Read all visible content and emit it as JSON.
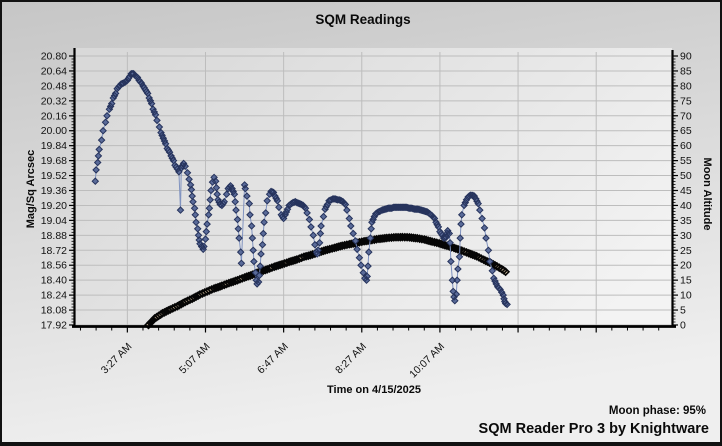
{
  "title": "SQM Readings",
  "footer": {
    "moon_phase": "Moon phase: 95%",
    "moon_phase_value": "95%",
    "credit": "SQM Reader Pro 3 by Knightware"
  },
  "colors": {
    "window_bg_top": "#c6c6c6",
    "window_bg_bottom": "#efefef",
    "plot_bg_left": "#d9d9d9",
    "plot_bg_right": "#f3f3f3",
    "gridline": "#bdbdbd",
    "axis": "#000000",
    "sqm_marker_fill": "#5a6b99",
    "sqm_marker_stroke": "#26335c",
    "sqm_line": "#8093c0",
    "moon_marker_fill": "#f3dbb6",
    "moon_marker_stroke": "#050505"
  },
  "chart_data": {
    "type": "scatter",
    "title": "SQM Readings",
    "xlabel": "Time on 4/15/2025",
    "ylabel_left": "Mag/Sq Arcsec",
    "ylabel_right": "Moon Altitude",
    "grid": true,
    "x_tick_labels": [
      "3:27 AM",
      "5:07 AM",
      "6:47 AM",
      "8:27 AM",
      "10:07 AM"
    ],
    "x_tick_minutes": [
      207,
      307,
      407,
      507,
      607
    ],
    "x_range_minutes": [
      140,
      904
    ],
    "y_left_ticks": [
      20.8,
      20.64,
      20.48,
      20.32,
      20.16,
      20.0,
      19.84,
      19.68,
      19.52,
      19.36,
      19.2,
      19.04,
      18.88,
      18.72,
      18.56,
      18.4,
      18.24,
      18.08,
      17.92
    ],
    "y_left_range": [
      17.92,
      20.8
    ],
    "y_right_ticks": [
      90,
      85,
      80,
      75,
      70,
      65,
      60,
      55,
      50,
      45,
      40,
      35,
      30,
      25,
      20,
      15,
      10,
      5,
      0
    ],
    "y_right_range": [
      0,
      90
    ],
    "series": [
      {
        "name": "SQM reading (Mag/Sq Arcsec)",
        "axis": "left",
        "marker": "diamond",
        "points": [
          [
            166,
            19.46
          ],
          [
            167,
            19.58
          ],
          [
            169,
            19.66
          ],
          [
            170,
            19.73
          ],
          [
            171,
            19.8
          ],
          [
            174,
            19.9
          ],
          [
            176,
            20.0
          ],
          [
            179,
            20.09
          ],
          [
            181,
            20.16
          ],
          [
            184,
            20.23
          ],
          [
            187,
            20.29
          ],
          [
            189,
            20.35
          ],
          [
            192,
            20.4
          ],
          [
            194,
            20.45
          ],
          [
            197,
            20.48
          ],
          [
            199,
            20.5
          ],
          [
            202,
            20.51
          ],
          [
            204,
            20.52
          ],
          [
            207,
            20.54
          ],
          [
            210,
            20.58
          ],
          [
            212,
            20.61
          ],
          [
            215,
            20.61
          ],
          [
            217,
            20.59
          ],
          [
            220,
            20.57
          ],
          [
            222,
            20.54
          ],
          [
            225,
            20.51
          ],
          [
            227,
            20.48
          ],
          [
            230,
            20.44
          ],
          [
            233,
            20.4
          ],
          [
            235,
            20.35
          ],
          [
            238,
            20.29
          ],
          [
            240,
            20.23
          ],
          [
            243,
            20.17
          ],
          [
            245,
            20.11
          ],
          [
            248,
            20.04
          ],
          [
            250,
            19.98
          ],
          [
            253,
            19.92
          ],
          [
            256,
            19.86
          ],
          [
            258,
            19.81
          ],
          [
            261,
            19.77
          ],
          [
            263,
            19.73
          ],
          [
            266,
            19.68
          ],
          [
            268,
            19.63
          ],
          [
            271,
            19.59
          ],
          [
            273,
            19.56
          ],
          [
            275,
            19.15
          ],
          [
            276,
            19.6
          ],
          [
            279,
            19.65
          ],
          [
            281,
            19.62
          ],
          [
            284,
            19.55
          ],
          [
            286,
            19.48
          ],
          [
            288,
            19.42
          ],
          [
            289,
            19.37
          ],
          [
            290,
            19.3
          ],
          [
            291,
            19.24
          ],
          [
            293,
            19.17
          ],
          [
            294,
            19.1
          ],
          [
            295,
            19.02
          ],
          [
            297,
            18.95
          ],
          [
            298,
            18.88
          ],
          [
            299,
            18.83
          ],
          [
            300,
            18.79
          ],
          [
            302,
            18.76
          ],
          [
            304,
            18.73
          ],
          [
            305,
            18.76
          ],
          [
            307,
            18.84
          ],
          [
            308,
            18.92
          ],
          [
            309,
            19.0
          ],
          [
            311,
            19.1
          ],
          [
            312,
            19.17
          ],
          [
            313,
            19.26
          ],
          [
            314,
            19.36
          ],
          [
            316,
            19.45
          ],
          [
            318,
            19.5
          ],
          [
            320,
            19.46
          ],
          [
            321,
            19.39
          ],
          [
            322,
            19.32
          ],
          [
            323,
            19.26
          ],
          [
            326,
            19.21
          ],
          [
            328,
            19.2
          ],
          [
            331,
            19.24
          ],
          [
            334,
            19.32
          ],
          [
            336,
            19.38
          ],
          [
            339,
            19.41
          ],
          [
            341,
            19.38
          ],
          [
            344,
            19.32
          ],
          [
            345,
            19.24
          ],
          [
            346,
            19.15
          ],
          [
            348,
            19.05
          ],
          [
            349,
            18.95
          ],
          [
            350,
            18.85
          ],
          [
            352,
            18.7
          ],
          [
            353,
            18.58
          ],
          [
            357,
            19.42
          ],
          [
            358,
            19.38
          ],
          [
            360,
            19.3
          ],
          [
            363,
            19.22
          ],
          [
            364,
            19.1
          ],
          [
            366,
            18.98
          ],
          [
            367,
            18.85
          ],
          [
            368,
            18.72
          ],
          [
            369,
            18.6
          ],
          [
            371,
            18.48
          ],
          [
            372,
            18.4
          ],
          [
            373,
            18.36
          ],
          [
            375,
            18.38
          ],
          [
            376,
            18.45
          ],
          [
            377,
            18.55
          ],
          [
            378,
            18.68
          ],
          [
            380,
            18.78
          ],
          [
            381,
            18.9
          ],
          [
            382,
            19.02
          ],
          [
            384,
            19.12
          ],
          [
            386,
            19.25
          ],
          [
            389,
            19.32
          ],
          [
            391,
            19.35
          ],
          [
            394,
            19.34
          ],
          [
            396,
            19.3
          ],
          [
            399,
            19.25
          ],
          [
            401,
            19.18
          ],
          [
            404,
            19.1
          ],
          [
            407,
            19.06
          ],
          [
            409,
            19.1
          ],
          [
            412,
            19.16
          ],
          [
            414,
            19.2
          ],
          [
            417,
            19.22
          ],
          [
            419,
            19.23
          ],
          [
            422,
            19.24
          ],
          [
            424,
            19.23
          ],
          [
            427,
            19.22
          ],
          [
            430,
            19.21
          ],
          [
            432,
            19.2
          ],
          [
            435,
            19.17
          ],
          [
            437,
            19.12
          ],
          [
            440,
            19.05
          ],
          [
            442,
            18.97
          ],
          [
            445,
            18.88
          ],
          [
            447,
            18.78
          ],
          [
            449,
            18.7
          ],
          [
            450,
            18.68
          ],
          [
            451,
            18.72
          ],
          [
            453,
            18.8
          ],
          [
            454,
            18.9
          ],
          [
            455,
            18.98
          ],
          [
            458,
            19.08
          ],
          [
            460,
            19.16
          ],
          [
            463,
            19.21
          ],
          [
            465,
            19.25
          ],
          [
            468,
            19.26
          ],
          [
            470,
            19.27
          ],
          [
            473,
            19.27
          ],
          [
            476,
            19.26
          ],
          [
            478,
            19.26
          ],
          [
            481,
            19.25
          ],
          [
            483,
            19.24
          ],
          [
            486,
            19.21
          ],
          [
            488,
            19.15
          ],
          [
            491,
            19.06
          ],
          [
            493,
            18.98
          ],
          [
            496,
            18.9
          ],
          [
            499,
            18.82
          ],
          [
            501,
            18.73
          ],
          [
            504,
            18.64
          ],
          [
            506,
            18.56
          ],
          [
            509,
            18.48
          ],
          [
            511,
            18.42
          ],
          [
            513,
            18.4
          ],
          [
            514,
            18.44
          ],
          [
            515,
            18.55
          ],
          [
            516,
            18.7
          ],
          [
            518,
            18.85
          ],
          [
            519,
            18.95
          ],
          [
            520,
            19.02
          ],
          [
            523,
            19.08
          ],
          [
            525,
            19.11
          ],
          [
            528,
            19.13
          ],
          [
            531,
            19.14
          ],
          [
            533,
            19.15
          ],
          [
            537,
            19.16
          ],
          [
            541,
            19.17
          ],
          [
            545,
            19.17
          ],
          [
            548,
            19.18
          ],
          [
            552,
            19.18
          ],
          [
            556,
            19.18
          ],
          [
            560,
            19.18
          ],
          [
            564,
            19.18
          ],
          [
            568,
            19.17
          ],
          [
            571,
            19.17
          ],
          [
            575,
            19.16
          ],
          [
            579,
            19.16
          ],
          [
            583,
            19.15
          ],
          [
            587,
            19.14
          ],
          [
            591,
            19.13
          ],
          [
            594,
            19.11
          ],
          [
            597,
            19.09
          ],
          [
            600,
            19.06
          ],
          [
            602,
            19.02
          ],
          [
            605,
            18.97
          ],
          [
            607,
            18.92
          ],
          [
            610,
            18.88
          ],
          [
            612,
            18.85
          ],
          [
            615,
            18.86
          ],
          [
            616,
            18.9
          ],
          [
            617,
            18.93
          ],
          [
            619,
            18.9
          ],
          [
            620,
            18.8
          ],
          [
            621,
            18.6
          ],
          [
            623,
            18.4
          ],
          [
            624,
            18.28
          ],
          [
            625,
            18.22
          ],
          [
            626,
            18.18
          ],
          [
            628,
            18.25
          ],
          [
            629,
            18.4
          ],
          [
            630,
            18.52
          ],
          [
            632,
            18.65
          ],
          [
            633,
            18.85
          ],
          [
            634,
            19.0
          ],
          [
            635,
            19.1
          ],
          [
            638,
            19.2
          ],
          [
            641,
            19.26
          ],
          [
            643,
            19.29
          ],
          [
            646,
            19.31
          ],
          [
            648,
            19.31
          ],
          [
            651,
            19.3
          ],
          [
            653,
            19.27
          ],
          [
            656,
            19.22
          ],
          [
            658,
            19.15
          ],
          [
            661,
            19.06
          ],
          [
            664,
            18.96
          ],
          [
            666,
            18.85
          ],
          [
            669,
            18.72
          ],
          [
            671,
            18.6
          ],
          [
            674,
            18.5
          ],
          [
            676,
            18.42
          ],
          [
            679,
            18.36
          ],
          [
            681,
            18.33
          ],
          [
            684,
            18.3
          ],
          [
            686,
            18.27
          ],
          [
            688,
            18.24
          ],
          [
            689,
            18.2
          ],
          [
            690,
            18.17
          ],
          [
            691,
            18.15
          ],
          [
            693,
            18.14
          ]
        ]
      },
      {
        "name": "Moon Altitude (degrees)",
        "axis": "right",
        "marker": "diamond",
        "points": [
          [
            234,
            0
          ],
          [
            242,
            2.2
          ],
          [
            252,
            3.9
          ],
          [
            262,
            5.2
          ],
          [
            271,
            6.3
          ],
          [
            281,
            7.7
          ],
          [
            290,
            8.8
          ],
          [
            300,
            10.2
          ],
          [
            309,
            11.2
          ],
          [
            318,
            12.2
          ],
          [
            328,
            13.1
          ],
          [
            337,
            14.0
          ],
          [
            348,
            15.0
          ],
          [
            357,
            15.9
          ],
          [
            367,
            16.8
          ],
          [
            376,
            17.8
          ],
          [
            386,
            18.6
          ],
          [
            395,
            19.5
          ],
          [
            405,
            20.3
          ],
          [
            414,
            21.1
          ],
          [
            424,
            21.9
          ],
          [
            433,
            22.8
          ],
          [
            444,
            23.6
          ],
          [
            453,
            24.4
          ],
          [
            463,
            25.2
          ],
          [
            472,
            25.8
          ],
          [
            482,
            26.5
          ],
          [
            491,
            27.0
          ],
          [
            501,
            27.5
          ],
          [
            510,
            28.0
          ],
          [
            520,
            28.4
          ],
          [
            529,
            28.8
          ],
          [
            539,
            29.1
          ],
          [
            548,
            29.3
          ],
          [
            559,
            29.4
          ],
          [
            568,
            29.3
          ],
          [
            578,
            29.0
          ],
          [
            587,
            28.6
          ],
          [
            597,
            27.9
          ],
          [
            606,
            27.3
          ],
          [
            616,
            26.5
          ],
          [
            625,
            25.8
          ],
          [
            635,
            24.9
          ],
          [
            644,
            24.0
          ],
          [
            654,
            23.0
          ],
          [
            663,
            21.8
          ],
          [
            673,
            20.6
          ],
          [
            680,
            19.6
          ],
          [
            686,
            18.7
          ],
          [
            691,
            17.8
          ]
        ]
      }
    ]
  }
}
